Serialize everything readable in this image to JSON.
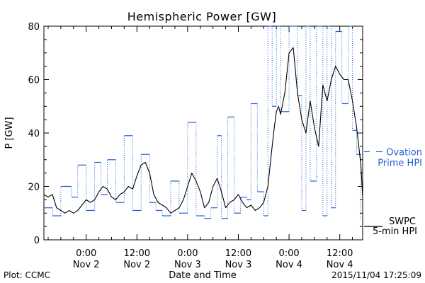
{
  "chart_data": {
    "type": "line",
    "title": "Hemispheric Power [GW]",
    "xlabel": "Date and Time",
    "ylabel": "P [GW]",
    "ylim": [
      0,
      80
    ],
    "yticks": [
      0,
      20,
      40,
      60,
      80
    ],
    "xlim": [
      "2015-11-01 14:00",
      "2015-11-04 17:25"
    ],
    "xtick_labels": [
      {
        "time": "2015-11-02 00:00",
        "line1": "0:00",
        "line2": "Nov 2"
      },
      {
        "time": "2015-11-02 12:00",
        "line1": "12:00",
        "line2": "Nov 2"
      },
      {
        "time": "2015-11-03 00:00",
        "line1": "0:00",
        "line2": "Nov 3"
      },
      {
        "time": "2015-11-03 12:00",
        "line1": "12:00",
        "line2": "Nov 3"
      },
      {
        "time": "2015-11-04 00:00",
        "line1": "0:00",
        "line2": "Nov 4"
      },
      {
        "time": "2015-11-04 12:00",
        "line1": "12:00",
        "line2": "Nov 4"
      }
    ],
    "legend_position": "right",
    "series": [
      {
        "name": "Ovation Prime HPI",
        "legend_lines": [
          "Ovation",
          "Prime HPI"
        ],
        "color": "#1f5fd6",
        "style": "dotted-step",
        "x": [
          "2015-11-01 14:00",
          "2015-11-01 16:00",
          "2015-11-01 18:00",
          "2015-11-01 20:30",
          "2015-11-01 22:00",
          "2015-11-02 00:00",
          "2015-11-02 02:00",
          "2015-11-02 03:30",
          "2015-11-02 05:00",
          "2015-11-02 07:00",
          "2015-11-02 09:00",
          "2015-11-02 11:00",
          "2015-11-02 13:00",
          "2015-11-02 15:00",
          "2015-11-02 16:30",
          "2015-11-02 18:00",
          "2015-11-02 20:00",
          "2015-11-02 22:00",
          "2015-11-03 00:00",
          "2015-11-03 02:00",
          "2015-11-03 04:00",
          "2015-11-03 05:30",
          "2015-11-03 07:00",
          "2015-11-03 08:00",
          "2015-11-03 09:30",
          "2015-11-03 11:00",
          "2015-11-03 12:30",
          "2015-11-03 14:00",
          "2015-11-03 15:00",
          "2015-11-03 16:30",
          "2015-11-03 18:00",
          "2015-11-03 19:00",
          "2015-11-03 20:00",
          "2015-11-03 21:00",
          "2015-11-03 22:00",
          "2015-11-04 00:00",
          "2015-11-04 02:00",
          "2015-11-04 03:00",
          "2015-11-04 04:00",
          "2015-11-04 05:00",
          "2015-11-04 06:30",
          "2015-11-04 08:00",
          "2015-11-04 09:00",
          "2015-11-04 10:00",
          "2015-11-04 11:00",
          "2015-11-04 12:30",
          "2015-11-04 14:00",
          "2015-11-04 15:00",
          "2015-11-04 16:00",
          "2015-11-04 17:00"
        ],
        "values": [
          12,
          9,
          20,
          16,
          28,
          11,
          29,
          17,
          30,
          14,
          39,
          11,
          32,
          14,
          11,
          9,
          22,
          10,
          44,
          9,
          8,
          12,
          39,
          8,
          46,
          10,
          16,
          15,
          51,
          18,
          9,
          80,
          50,
          80,
          48,
          80,
          54,
          11,
          80,
          22,
          80,
          9,
          80,
          12,
          78,
          51,
          80,
          41,
          32,
          8
        ]
      },
      {
        "name": "SWPC 5-min HPI",
        "legend_lines": [
          "SWPC",
          "5-min HPI"
        ],
        "color": "#000000",
        "style": "line",
        "x": [
          "2015-11-01 14:00",
          "2015-11-01 15:00",
          "2015-11-01 16:00",
          "2015-11-01 17:00",
          "2015-11-01 18:00",
          "2015-11-01 19:00",
          "2015-11-01 20:00",
          "2015-11-01 21:00",
          "2015-11-01 22:00",
          "2015-11-01 23:00",
          "2015-11-02 00:00",
          "2015-11-02 01:00",
          "2015-11-02 02:00",
          "2015-11-02 03:00",
          "2015-11-02 04:00",
          "2015-11-02 05:00",
          "2015-11-02 06:00",
          "2015-11-02 07:00",
          "2015-11-02 08:00",
          "2015-11-02 09:00",
          "2015-11-02 10:00",
          "2015-11-02 11:00",
          "2015-11-02 12:00",
          "2015-11-02 13:00",
          "2015-11-02 14:00",
          "2015-11-02 15:00",
          "2015-11-02 16:00",
          "2015-11-02 17:00",
          "2015-11-02 18:00",
          "2015-11-02 19:00",
          "2015-11-02 20:00",
          "2015-11-02 21:00",
          "2015-11-02 22:00",
          "2015-11-02 23:00",
          "2015-11-03 00:00",
          "2015-11-03 01:00",
          "2015-11-03 02:00",
          "2015-11-03 03:00",
          "2015-11-03 04:00",
          "2015-11-03 05:00",
          "2015-11-03 06:00",
          "2015-11-03 07:00",
          "2015-11-03 08:00",
          "2015-11-03 09:00",
          "2015-11-03 10:00",
          "2015-11-03 11:00",
          "2015-11-03 12:00",
          "2015-11-03 13:00",
          "2015-11-03 14:00",
          "2015-11-03 15:00",
          "2015-11-03 16:00",
          "2015-11-03 17:00",
          "2015-11-03 18:00",
          "2015-11-03 19:00",
          "2015-11-03 20:00",
          "2015-11-03 20:30",
          "2015-11-03 21:00",
          "2015-11-03 21:30",
          "2015-11-03 22:00",
          "2015-11-03 23:00",
          "2015-11-04 00:00",
          "2015-11-04 01:00",
          "2015-11-04 02:00",
          "2015-11-04 03:00",
          "2015-11-04 04:00",
          "2015-11-04 05:00",
          "2015-11-04 06:00",
          "2015-11-04 07:00",
          "2015-11-04 08:00",
          "2015-11-04 09:00",
          "2015-11-04 10:00",
          "2015-11-04 11:00",
          "2015-11-04 12:00",
          "2015-11-04 13:00",
          "2015-11-04 14:00",
          "2015-11-04 15:00",
          "2015-11-04 16:00",
          "2015-11-04 17:00",
          "2015-11-04 17:25"
        ],
        "values": [
          17,
          16,
          17,
          12,
          11,
          10,
          11,
          10,
          11,
          13,
          15,
          14,
          15,
          18,
          20,
          19,
          16,
          15,
          17,
          18,
          20,
          19,
          24,
          28,
          29,
          25,
          17,
          14,
          13,
          12,
          10,
          11,
          12,
          15,
          20,
          25,
          22,
          18,
          12,
          14,
          20,
          23,
          18,
          12,
          14,
          15,
          17,
          14,
          12,
          13,
          11,
          12,
          14,
          20,
          35,
          42,
          48,
          50,
          47,
          55,
          70,
          72,
          55,
          45,
          40,
          52,
          42,
          35,
          58,
          52,
          60,
          65,
          62,
          60,
          60,
          52,
          42,
          28,
          16
        ]
      }
    ],
    "plot_credit": "Plot: CCMC",
    "timestamp": "2015/11/04 17:25:09"
  }
}
